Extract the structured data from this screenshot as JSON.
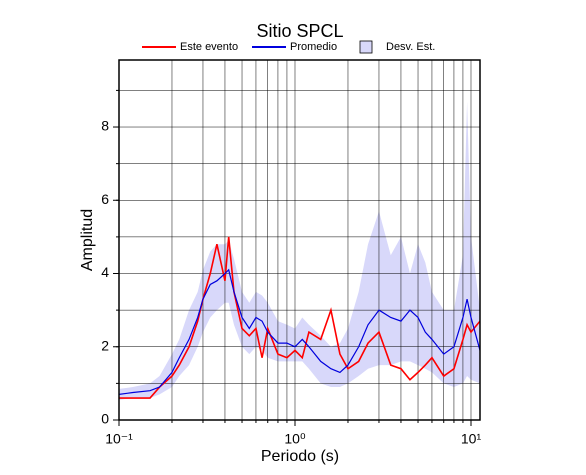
{
  "chart_data": {
    "type": "line",
    "title": "Sitio SPCL",
    "xlabel": "Periodo (s)",
    "ylabel": "Amplitud",
    "xscale": "log",
    "grid": true,
    "xlim": [
      0.1,
      11.25
    ],
    "ylim": [
      0,
      9.83
    ],
    "xticks": [
      {
        "value": 0.1,
        "label": "10⁻¹"
      },
      {
        "value": 1,
        "label": "10⁰"
      },
      {
        "value": 10,
        "label": "10¹"
      }
    ],
    "yticks": [
      0,
      2,
      4,
      6,
      8
    ],
    "xgrid": [
      0.2,
      0.3,
      0.4,
      0.5,
      0.6,
      0.7,
      0.8,
      0.9,
      1,
      2,
      3,
      4,
      5,
      6,
      7,
      8,
      9,
      10
    ],
    "ygrid": [
      1,
      2,
      3,
      4,
      5,
      6,
      7,
      8,
      9
    ],
    "x": [
      0.1,
      0.12,
      0.15,
      0.17,
      0.2,
      0.22,
      0.25,
      0.28,
      0.3,
      0.33,
      0.36,
      0.4,
      0.42,
      0.45,
      0.5,
      0.55,
      0.6,
      0.65,
      0.7,
      0.8,
      0.9,
      1.0,
      1.1,
      1.2,
      1.4,
      1.6,
      1.8,
      2.0,
      2.3,
      2.6,
      3.0,
      3.5,
      4.0,
      4.5,
      5.0,
      5.5,
      6.0,
      7.0,
      8.0,
      9.0,
      9.5,
      10,
      11.25
    ],
    "band": {
      "name": "Desv. Est.",
      "color": "#d8d8fa",
      "lower": [
        0.55,
        0.6,
        0.6,
        0.7,
        0.9,
        1.2,
        1.5,
        2.0,
        2.4,
        2.8,
        3.0,
        3.2,
        3.2,
        2.6,
        2.0,
        1.8,
        2.0,
        1.9,
        1.7,
        1.6,
        1.6,
        1.6,
        1.6,
        1.4,
        1.0,
        0.9,
        0.9,
        1.0,
        1.2,
        1.4,
        1.5,
        1.5,
        1.6,
        1.6,
        1.5,
        1.4,
        1.3,
        1.0,
        0.9,
        1.0,
        1.2,
        1.1,
        1.0
      ],
      "upper": [
        0.85,
        0.9,
        1.0,
        1.2,
        1.8,
        2.2,
        3.0,
        3.5,
        4.1,
        4.6,
        4.8,
        4.8,
        4.9,
        4.4,
        3.5,
        3.2,
        3.5,
        3.4,
        3.2,
        2.7,
        2.6,
        2.5,
        2.8,
        2.6,
        2.3,
        2.0,
        2.1,
        2.5,
        3.5,
        4.8,
        5.7,
        4.5,
        5.0,
        4.0,
        4.8,
        4.3,
        3.5,
        3.0,
        3.0,
        4.5,
        8.7,
        5.0,
        3.0
      ]
    },
    "series": [
      {
        "name": "Este evento",
        "color": "#ff0000",
        "values": [
          0.6,
          0.6,
          0.6,
          0.9,
          1.2,
          1.5,
          2.0,
          2.7,
          3.3,
          4.0,
          4.8,
          3.8,
          5.0,
          3.5,
          2.5,
          2.3,
          2.5,
          1.7,
          2.5,
          1.8,
          1.7,
          1.9,
          1.7,
          2.4,
          2.2,
          3.0,
          1.8,
          1.4,
          1.6,
          2.1,
          2.4,
          1.5,
          1.4,
          1.1,
          1.3,
          1.5,
          1.7,
          1.2,
          1.4,
          2.2,
          2.6,
          2.4,
          2.7
        ]
      },
      {
        "name": "Promedio",
        "color": "#0000dd",
        "values": [
          0.7,
          0.75,
          0.8,
          0.9,
          1.3,
          1.7,
          2.2,
          2.8,
          3.3,
          3.7,
          3.8,
          4.0,
          4.1,
          3.5,
          2.8,
          2.5,
          2.8,
          2.7,
          2.4,
          2.1,
          2.1,
          2.0,
          2.2,
          2.0,
          1.6,
          1.4,
          1.3,
          1.5,
          2.0,
          2.6,
          3.0,
          2.8,
          2.7,
          3.0,
          2.8,
          2.4,
          2.2,
          1.8,
          2.0,
          2.8,
          3.3,
          2.8,
          1.9
        ]
      }
    ]
  }
}
